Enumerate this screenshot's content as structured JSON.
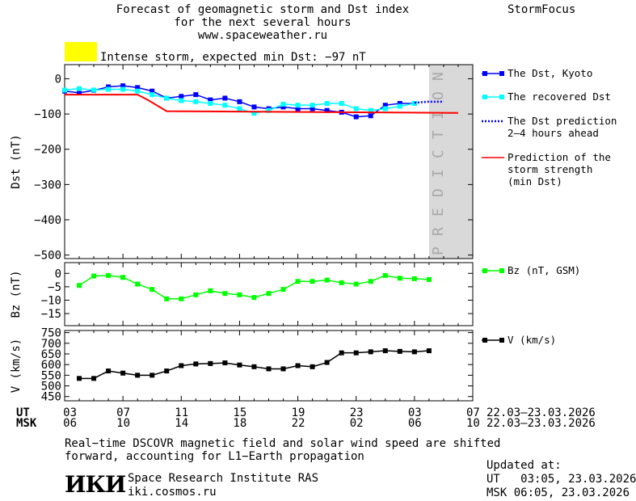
{
  "header": {
    "title_lines": [
      "Forecast of geomagnetic storm and Dst index",
      "for the next several hours",
      "www.spaceweather.ru"
    ],
    "brand": "StormFocus",
    "storm_label": "Intense storm, expected min Dst: −97 nT",
    "storm_color": "#ffff00"
  },
  "legend": {
    "dst_kyoto": "The Dst, Kyoto",
    "dst_recovered": "The recovered Dst",
    "dst_prediction": [
      "The Dst prediction",
      "2–4 hours ahead"
    ],
    "storm_strength": [
      "Prediction of the",
      "storm strength",
      "(min Dst)"
    ],
    "bz": "Bz (nT, GSM)",
    "v": "V (km/s)"
  },
  "prediction_label": "PREDICTION",
  "time_axis": {
    "ut_label": "UT",
    "msk_label": "MSK",
    "ut_ticks": [
      "03",
      "07",
      "11",
      "15",
      "19",
      "23",
      "03",
      "07"
    ],
    "msk_ticks": [
      "06",
      "10",
      "14",
      "18",
      "22",
      "02",
      "06",
      "10"
    ],
    "ut_range": "22.03–23.03.2026",
    "msk_range": "22.03–23.03.2026"
  },
  "footer": {
    "note_lines": [
      "Real−time DSCOVR magnetic field and solar wind speed are shifted",
      "forward, accounting for L1−Earth propagation"
    ],
    "logo_text": "ИКИ",
    "institute": "Space Research Institute RAS",
    "website": "iki.cosmos.ru",
    "updated_label": "Updated at:",
    "updated_ut": "UT   03:05, 23.03.2026",
    "updated_msk": "MSK 06:05, 23.03.2026"
  },
  "colors": {
    "kyoto": "#0000ff",
    "recovered": "#00ffff",
    "prediction_line": "#ff0000",
    "bz": "#00ff00",
    "v": "#000000",
    "prediction_zone": "#d9d9d9"
  },
  "chart_data": [
    {
      "type": "line",
      "ylabel": "Dst (nT)",
      "ylim": [
        -510,
        40
      ],
      "yticks": [
        0,
        -100,
        -200,
        -300,
        -400,
        -500
      ],
      "x_hours_ut": [
        3,
        4,
        5,
        6,
        7,
        8,
        9,
        10,
        11,
        12,
        13,
        14,
        15,
        16,
        17,
        18,
        19,
        20,
        21,
        22,
        23,
        24,
        25,
        26,
        27
      ],
      "series": [
        {
          "name": "The Dst, Kyoto",
          "x": [
            3,
            4,
            5,
            6,
            7,
            8,
            9,
            10,
            11,
            12,
            13,
            14,
            15,
            16,
            17,
            18,
            19,
            20,
            21,
            22,
            23,
            24,
            25,
            26,
            27
          ],
          "values": [
            -35,
            -40,
            -33,
            -23,
            -20,
            -25,
            -35,
            -55,
            -50,
            -45,
            -60,
            -55,
            -65,
            -80,
            -85,
            -80,
            -85,
            -85,
            -90,
            -95,
            -108,
            -105,
            -75,
            -70,
            -70
          ]
        },
        {
          "name": "The recovered Dst",
          "x": [
            3,
            4,
            5,
            6,
            7,
            8,
            9,
            10,
            11,
            12,
            13,
            14,
            15,
            16,
            17,
            18,
            19,
            20,
            21,
            22,
            23,
            24,
            25,
            26,
            27
          ],
          "values": [
            -32,
            -28,
            -32,
            -30,
            -30,
            -35,
            -45,
            -55,
            -62,
            -65,
            -70,
            -75,
            -85,
            -98,
            -90,
            -72,
            -75,
            -75,
            -70,
            -70,
            -85,
            -90,
            -85,
            -78,
            -70
          ]
        },
        {
          "name": "The Dst prediction 2–4 hours ahead",
          "x": [
            27,
            28,
            29
          ],
          "values": [
            -68,
            -65,
            -65
          ]
        },
        {
          "name": "Prediction of the storm strength (min Dst)",
          "x": [
            3,
            8,
            8.7,
            10,
            30
          ],
          "values": [
            -45,
            -45,
            -60,
            -92,
            -97
          ]
        }
      ]
    },
    {
      "type": "line",
      "ylabel": "Bz (nT)",
      "ylim": [
        -19.5,
        4
      ],
      "yticks": [
        0,
        -5,
        -10,
        -15
      ],
      "series": [
        {
          "name": "Bz (nT, GSM)",
          "x": [
            4,
            5,
            6,
            7,
            8,
            9,
            10,
            11,
            12,
            13,
            14,
            15,
            16,
            17,
            18,
            19,
            20,
            21,
            22,
            23,
            24,
            25,
            26,
            27,
            28
          ],
          "values": [
            -4.5,
            -1,
            -0.8,
            -1.5,
            -4,
            -6,
            -9.5,
            -9.5,
            -8,
            -6.5,
            -7.5,
            -8,
            -9,
            -7.5,
            -6,
            -3,
            -3,
            -2.5,
            -3.5,
            -4,
            -3,
            -0.8,
            -1.8,
            -2,
            -2.3
          ]
        }
      ]
    },
    {
      "type": "line",
      "ylabel": "V (km/s)",
      "ylim": [
        430,
        760
      ],
      "yticks": [
        450,
        500,
        550,
        600,
        650,
        700,
        750
      ],
      "series": [
        {
          "name": "V (km/s)",
          "x": [
            4,
            5,
            6,
            7,
            8,
            9,
            10,
            11,
            12,
            13,
            14,
            15,
            16,
            17,
            18,
            19,
            20,
            21,
            22,
            23,
            24,
            25,
            26,
            27,
            28
          ],
          "values": [
            535,
            535,
            570,
            560,
            550,
            550,
            570,
            595,
            603,
            605,
            608,
            598,
            590,
            580,
            580,
            595,
            590,
            610,
            655,
            655,
            660,
            665,
            662,
            660,
            665
          ]
        }
      ]
    }
  ]
}
